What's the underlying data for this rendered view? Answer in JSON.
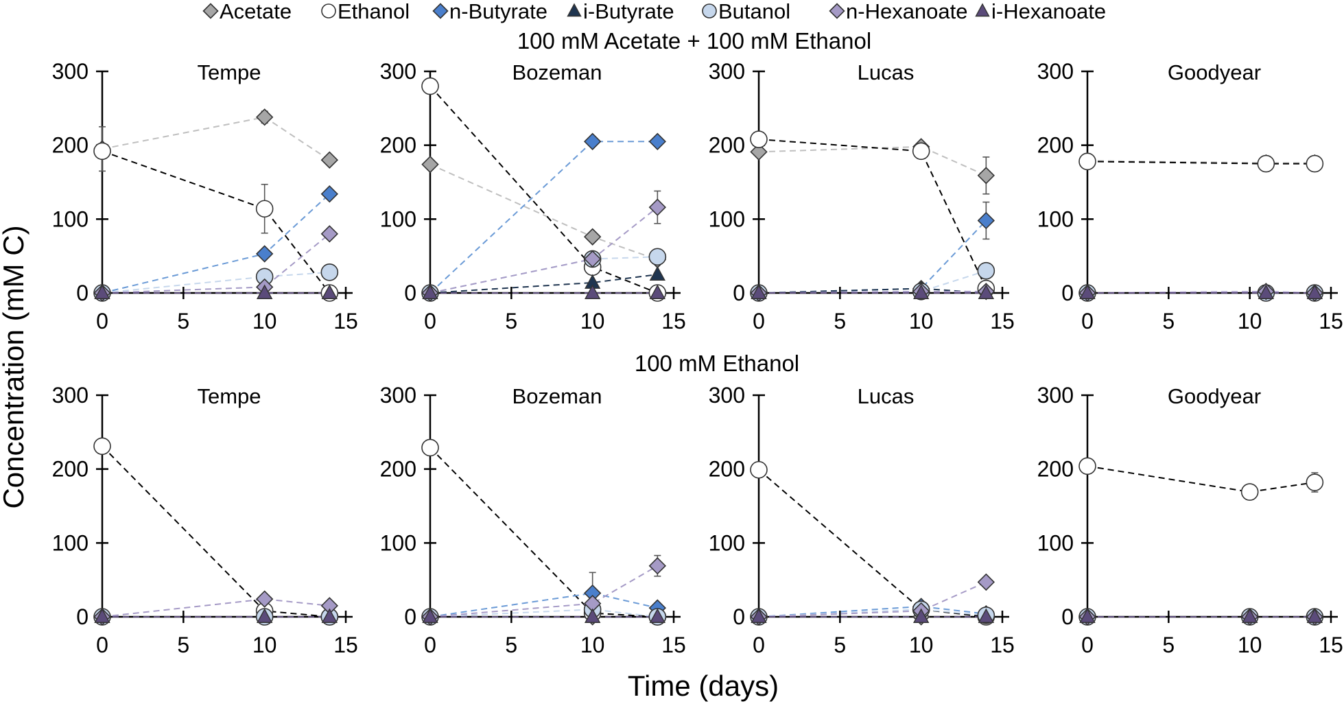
{
  "legend": [
    {
      "name": "Acetate",
      "marker": "diamond",
      "fill": "#a6a6a6",
      "line": "#bfbfbf"
    },
    {
      "name": "Ethanol",
      "marker": "circle",
      "fill": "#ffffff",
      "line": "#000000"
    },
    {
      "name": "n-Butyrate",
      "marker": "diamond",
      "fill": "#4a7fcc",
      "line": "#6a9ad6"
    },
    {
      "name": "i-Butyrate",
      "marker": "triangle",
      "fill": "#1f3550",
      "line": "#1f3550"
    },
    {
      "name": "Butanol",
      "marker": "circle",
      "fill": "#c6d7ec",
      "line": "#c6d7ec"
    },
    {
      "name": "n-Hexanoate",
      "marker": "diamond",
      "fill": "#a59ac6",
      "line": "#a59ac6"
    },
    {
      "name": "i-Hexanoate",
      "marker": "triangle",
      "fill": "#5b4b7a",
      "line": "#5b4b7a"
    }
  ],
  "rows": [
    {
      "title": "100 mM Acetate + 100 mM Ethanol"
    },
    {
      "title": "100 mM Ethanol"
    }
  ],
  "axes": {
    "ylabel": "Concentration (mM C)",
    "xlabel": "Time (days)",
    "yticks": [
      "0",
      "100",
      "200",
      "300"
    ],
    "xticks": [
      "0",
      "5",
      "10",
      "15"
    ]
  },
  "chart_data": [
    {
      "type": "line",
      "title": "Tempe",
      "row": 0,
      "col": 0,
      "xlim": [
        0,
        15
      ],
      "ylim": [
        0,
        300
      ],
      "series": [
        {
          "name": "Acetate",
          "x": [
            0,
            10,
            14
          ],
          "values": [
            195,
            238,
            180
          ],
          "err": [
            30,
            8,
            0
          ]
        },
        {
          "name": "Ethanol",
          "x": [
            0,
            10,
            14
          ],
          "values": [
            192,
            114,
            0
          ],
          "err": [
            0,
            33,
            0
          ]
        },
        {
          "name": "n-Butyrate",
          "x": [
            0,
            10,
            14
          ],
          "values": [
            0,
            53,
            134
          ],
          "err": [
            0,
            0,
            0
          ]
        },
        {
          "name": "i-Butyrate",
          "x": [
            0,
            10,
            14
          ],
          "values": [
            0,
            0,
            0
          ],
          "err": [
            0,
            0,
            0
          ]
        },
        {
          "name": "Butanol",
          "x": [
            0,
            10,
            14
          ],
          "values": [
            0,
            22,
            28
          ],
          "err": [
            0,
            0,
            0
          ]
        },
        {
          "name": "n-Hexanoate",
          "x": [
            0,
            10,
            14
          ],
          "values": [
            0,
            8,
            80
          ],
          "err": [
            0,
            0,
            0
          ]
        },
        {
          "name": "i-Hexanoate",
          "x": [
            0,
            10,
            14
          ],
          "values": [
            0,
            0,
            0
          ],
          "err": [
            0,
            0,
            0
          ]
        }
      ]
    },
    {
      "type": "line",
      "title": "Bozeman",
      "row": 0,
      "col": 1,
      "xlim": [
        0,
        15
      ],
      "ylim": [
        0,
        300
      ],
      "series": [
        {
          "name": "Acetate",
          "x": [
            0,
            10,
            14
          ],
          "values": [
            174,
            76,
            45
          ],
          "err": [
            0,
            0,
            0
          ]
        },
        {
          "name": "Ethanol",
          "x": [
            0,
            10,
            14
          ],
          "values": [
            280,
            35,
            0
          ],
          "err": [
            0,
            0,
            0
          ]
        },
        {
          "name": "n-Butyrate",
          "x": [
            0,
            10,
            14
          ],
          "values": [
            0,
            205,
            205
          ],
          "err": [
            0,
            0,
            0
          ]
        },
        {
          "name": "i-Butyrate",
          "x": [
            0,
            10,
            14
          ],
          "values": [
            0,
            14,
            25
          ],
          "err": [
            0,
            0,
            0
          ]
        },
        {
          "name": "Butanol",
          "x": [
            0,
            10,
            14
          ],
          "values": [
            0,
            46,
            49
          ],
          "err": [
            0,
            0,
            0
          ]
        },
        {
          "name": "n-Hexanoate",
          "x": [
            0,
            10,
            14
          ],
          "values": [
            0,
            46,
            116
          ],
          "err": [
            0,
            0,
            22
          ]
        },
        {
          "name": "i-Hexanoate",
          "x": [
            0,
            10,
            14
          ],
          "values": [
            0,
            0,
            0
          ],
          "err": [
            0,
            0,
            0
          ]
        }
      ]
    },
    {
      "type": "line",
      "title": "Lucas",
      "row": 0,
      "col": 2,
      "xlim": [
        0,
        15
      ],
      "ylim": [
        0,
        300
      ],
      "series": [
        {
          "name": "Acetate",
          "x": [
            0,
            10,
            14
          ],
          "values": [
            191,
            198,
            159
          ],
          "err": [
            0,
            0,
            25
          ]
        },
        {
          "name": "Ethanol",
          "x": [
            0,
            10,
            14
          ],
          "values": [
            208,
            192,
            6
          ],
          "err": [
            0,
            0,
            0
          ]
        },
        {
          "name": "n-Butyrate",
          "x": [
            0,
            10,
            14
          ],
          "values": [
            0,
            6,
            98
          ],
          "err": [
            0,
            0,
            25
          ]
        },
        {
          "name": "i-Butyrate",
          "x": [
            0,
            10,
            14
          ],
          "values": [
            0,
            6,
            0
          ],
          "err": [
            0,
            0,
            0
          ]
        },
        {
          "name": "Butanol",
          "x": [
            0,
            10,
            14
          ],
          "values": [
            0,
            2,
            30
          ],
          "err": [
            0,
            0,
            0
          ]
        },
        {
          "name": "n-Hexanoate",
          "x": [
            0,
            10,
            14
          ],
          "values": [
            0,
            2,
            2
          ],
          "err": [
            0,
            0,
            0
          ]
        },
        {
          "name": "i-Hexanoate",
          "x": [
            0,
            10,
            14
          ],
          "values": [
            0,
            0,
            0
          ],
          "err": [
            0,
            0,
            0
          ]
        }
      ]
    },
    {
      "type": "line",
      "title": "Goodyear",
      "row": 0,
      "col": 3,
      "xlim": [
        0,
        15
      ],
      "ylim": [
        0,
        300
      ],
      "series": [
        {
          "name": "Acetate",
          "x": [
            0,
            11,
            14
          ],
          "values": [
            179,
            176,
            176
          ],
          "err": [
            0,
            0,
            0
          ]
        },
        {
          "name": "Ethanol",
          "x": [
            0,
            11,
            14
          ],
          "values": [
            178,
            175,
            175
          ],
          "err": [
            0,
            0,
            0
          ]
        },
        {
          "name": "n-Butyrate",
          "x": [
            0,
            11,
            14
          ],
          "values": [
            0,
            0,
            0
          ],
          "err": [
            0,
            0,
            0
          ]
        },
        {
          "name": "i-Butyrate",
          "x": [
            0,
            11,
            14
          ],
          "values": [
            0,
            0,
            0
          ],
          "err": [
            0,
            0,
            0
          ]
        },
        {
          "name": "Butanol",
          "x": [
            0,
            11,
            14
          ],
          "values": [
            0,
            0,
            0
          ],
          "err": [
            0,
            0,
            0
          ]
        },
        {
          "name": "n-Hexanoate",
          "x": [
            0,
            11,
            14
          ],
          "values": [
            0,
            2,
            0
          ],
          "err": [
            0,
            0,
            0
          ]
        },
        {
          "name": "i-Hexanoate",
          "x": [
            0,
            11,
            14
          ],
          "values": [
            0,
            0,
            0
          ],
          "err": [
            0,
            0,
            0
          ]
        }
      ]
    },
    {
      "type": "line",
      "title": "Tempe",
      "row": 1,
      "col": 0,
      "xlim": [
        0,
        15
      ],
      "ylim": [
        0,
        300
      ],
      "series": [
        {
          "name": "Acetate",
          "x": [
            0,
            10,
            14
          ],
          "values": [
            0,
            0,
            0
          ],
          "err": [
            0,
            0,
            0
          ]
        },
        {
          "name": "Ethanol",
          "x": [
            0,
            10,
            14
          ],
          "values": [
            231,
            8,
            0
          ],
          "err": [
            0,
            0,
            0
          ]
        },
        {
          "name": "n-Butyrate",
          "x": [
            0,
            10,
            14
          ],
          "values": [
            0,
            0,
            0
          ],
          "err": [
            0,
            0,
            0
          ]
        },
        {
          "name": "i-Butyrate",
          "x": [
            0,
            10,
            14
          ],
          "values": [
            0,
            0,
            0
          ],
          "err": [
            0,
            0,
            0
          ]
        },
        {
          "name": "Butanol",
          "x": [
            0,
            10,
            14
          ],
          "values": [
            0,
            0,
            0
          ],
          "err": [
            0,
            0,
            0
          ]
        },
        {
          "name": "n-Hexanoate",
          "x": [
            0,
            10,
            14
          ],
          "values": [
            0,
            24,
            15
          ],
          "err": [
            0,
            0,
            0
          ]
        },
        {
          "name": "i-Hexanoate",
          "x": [
            0,
            10,
            14
          ],
          "values": [
            0,
            0,
            0
          ],
          "err": [
            0,
            0,
            0
          ]
        }
      ]
    },
    {
      "type": "line",
      "title": "Bozeman",
      "row": 1,
      "col": 1,
      "xlim": [
        0,
        15
      ],
      "ylim": [
        0,
        300
      ],
      "series": [
        {
          "name": "Acetate",
          "x": [
            0,
            10,
            14
          ],
          "values": [
            0,
            0,
            0
          ],
          "err": [
            0,
            0,
            0
          ]
        },
        {
          "name": "Ethanol",
          "x": [
            0,
            10,
            14
          ],
          "values": [
            229,
            5,
            0
          ],
          "err": [
            0,
            0,
            0
          ]
        },
        {
          "name": "n-Butyrate",
          "x": [
            0,
            10,
            14
          ],
          "values": [
            0,
            32,
            12
          ],
          "err": [
            0,
            28,
            0
          ]
        },
        {
          "name": "i-Butyrate",
          "x": [
            0,
            10,
            14
          ],
          "values": [
            0,
            0,
            0
          ],
          "err": [
            0,
            0,
            0
          ]
        },
        {
          "name": "Butanol",
          "x": [
            0,
            10,
            14
          ],
          "values": [
            0,
            10,
            0
          ],
          "err": [
            0,
            0,
            0
          ]
        },
        {
          "name": "n-Hexanoate",
          "x": [
            0,
            10,
            14
          ],
          "values": [
            0,
            18,
            69
          ],
          "err": [
            0,
            0,
            14
          ]
        },
        {
          "name": "i-Hexanoate",
          "x": [
            0,
            10,
            14
          ],
          "values": [
            0,
            0,
            0
          ],
          "err": [
            0,
            0,
            0
          ]
        }
      ]
    },
    {
      "type": "line",
      "title": "Lucas",
      "row": 1,
      "col": 2,
      "xlim": [
        0,
        15
      ],
      "ylim": [
        0,
        300
      ],
      "series": [
        {
          "name": "Acetate",
          "x": [
            0,
            10,
            14
          ],
          "values": [
            0,
            0,
            0
          ],
          "err": [
            0,
            0,
            0
          ]
        },
        {
          "name": "Ethanol",
          "x": [
            0,
            10,
            14
          ],
          "values": [
            199,
            10,
            0
          ],
          "err": [
            0,
            0,
            0
          ]
        },
        {
          "name": "n-Butyrate",
          "x": [
            0,
            10,
            14
          ],
          "values": [
            0,
            14,
            4
          ],
          "err": [
            0,
            0,
            0
          ]
        },
        {
          "name": "i-Butyrate",
          "x": [
            0,
            10,
            14
          ],
          "values": [
            0,
            0,
            0
          ],
          "err": [
            0,
            0,
            0
          ]
        },
        {
          "name": "Butanol",
          "x": [
            0,
            10,
            14
          ],
          "values": [
            0,
            10,
            2
          ],
          "err": [
            0,
            0,
            0
          ]
        },
        {
          "name": "n-Hexanoate",
          "x": [
            0,
            10,
            14
          ],
          "values": [
            0,
            8,
            47
          ],
          "err": [
            0,
            0,
            0
          ]
        },
        {
          "name": "i-Hexanoate",
          "x": [
            0,
            10,
            14
          ],
          "values": [
            0,
            0,
            0
          ],
          "err": [
            0,
            0,
            0
          ]
        }
      ]
    },
    {
      "type": "line",
      "title": "Goodyear",
      "row": 1,
      "col": 3,
      "xlim": [
        0,
        15
      ],
      "ylim": [
        0,
        300
      ],
      "series": [
        {
          "name": "Acetate",
          "x": [
            0,
            10,
            14
          ],
          "values": [
            0,
            0,
            0
          ],
          "err": [
            0,
            0,
            0
          ]
        },
        {
          "name": "Ethanol",
          "x": [
            0,
            10,
            14
          ],
          "values": [
            204,
            169,
            182
          ],
          "err": [
            0,
            0,
            13
          ]
        },
        {
          "name": "n-Butyrate",
          "x": [
            0,
            10,
            14
          ],
          "values": [
            0,
            0,
            0
          ],
          "err": [
            0,
            0,
            0
          ]
        },
        {
          "name": "i-Butyrate",
          "x": [
            0,
            10,
            14
          ],
          "values": [
            0,
            0,
            0
          ],
          "err": [
            0,
            0,
            0
          ]
        },
        {
          "name": "Butanol",
          "x": [
            0,
            10,
            14
          ],
          "values": [
            0,
            0,
            0
          ],
          "err": [
            0,
            0,
            0
          ]
        },
        {
          "name": "n-Hexanoate",
          "x": [
            0,
            10,
            14
          ],
          "values": [
            0,
            0,
            0
          ],
          "err": [
            0,
            0,
            0
          ]
        },
        {
          "name": "i-Hexanoate",
          "x": [
            0,
            10,
            14
          ],
          "values": [
            0,
            0,
            0
          ],
          "err": [
            0,
            0,
            0
          ]
        }
      ]
    }
  ]
}
